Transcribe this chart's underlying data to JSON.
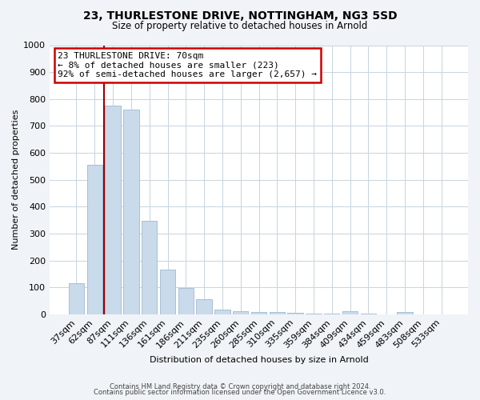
{
  "title": "23, THURLESTONE DRIVE, NOTTINGHAM, NG3 5SD",
  "subtitle": "Size of property relative to detached houses in Arnold",
  "xlabel": "Distribution of detached houses by size in Arnold",
  "ylabel": "Number of detached properties",
  "bar_labels": [
    "37sqm",
    "62sqm",
    "87sqm",
    "111sqm",
    "136sqm",
    "161sqm",
    "186sqm",
    "211sqm",
    "235sqm",
    "260sqm",
    "285sqm",
    "310sqm",
    "335sqm",
    "359sqm",
    "384sqm",
    "409sqm",
    "434sqm",
    "459sqm",
    "483sqm",
    "508sqm",
    "533sqm"
  ],
  "bar_heights": [
    115,
    555,
    775,
    760,
    348,
    165,
    98,
    55,
    18,
    12,
    10,
    8,
    5,
    3,
    2,
    12,
    2,
    1,
    10,
    1,
    1
  ],
  "bar_color": "#c9daea",
  "bar_edge_color": "#a8c0d6",
  "vline_x": 1.5,
  "vline_color": "#990000",
  "annotation_text": "23 THURLESTONE DRIVE: 70sqm\n← 8% of detached houses are smaller (223)\n92% of semi-detached houses are larger (2,657) →",
  "annotation_box_color": "#ffffff",
  "annotation_box_edge_color": "#cc0000",
  "ylim": [
    0,
    1000
  ],
  "yticks": [
    0,
    100,
    200,
    300,
    400,
    500,
    600,
    700,
    800,
    900,
    1000
  ],
  "footer_line1": "Contains HM Land Registry data © Crown copyright and database right 2024.",
  "footer_line2": "Contains public sector information licensed under the Open Government Licence v3.0.",
  "bg_color": "#f0f4f8",
  "plot_bg_color": "#ffffff",
  "grid_color": "#c8d4e0",
  "title_fontsize": 10,
  "subtitle_fontsize": 8.5,
  "axis_label_fontsize": 8,
  "tick_fontsize": 8,
  "annotation_fontsize": 8
}
